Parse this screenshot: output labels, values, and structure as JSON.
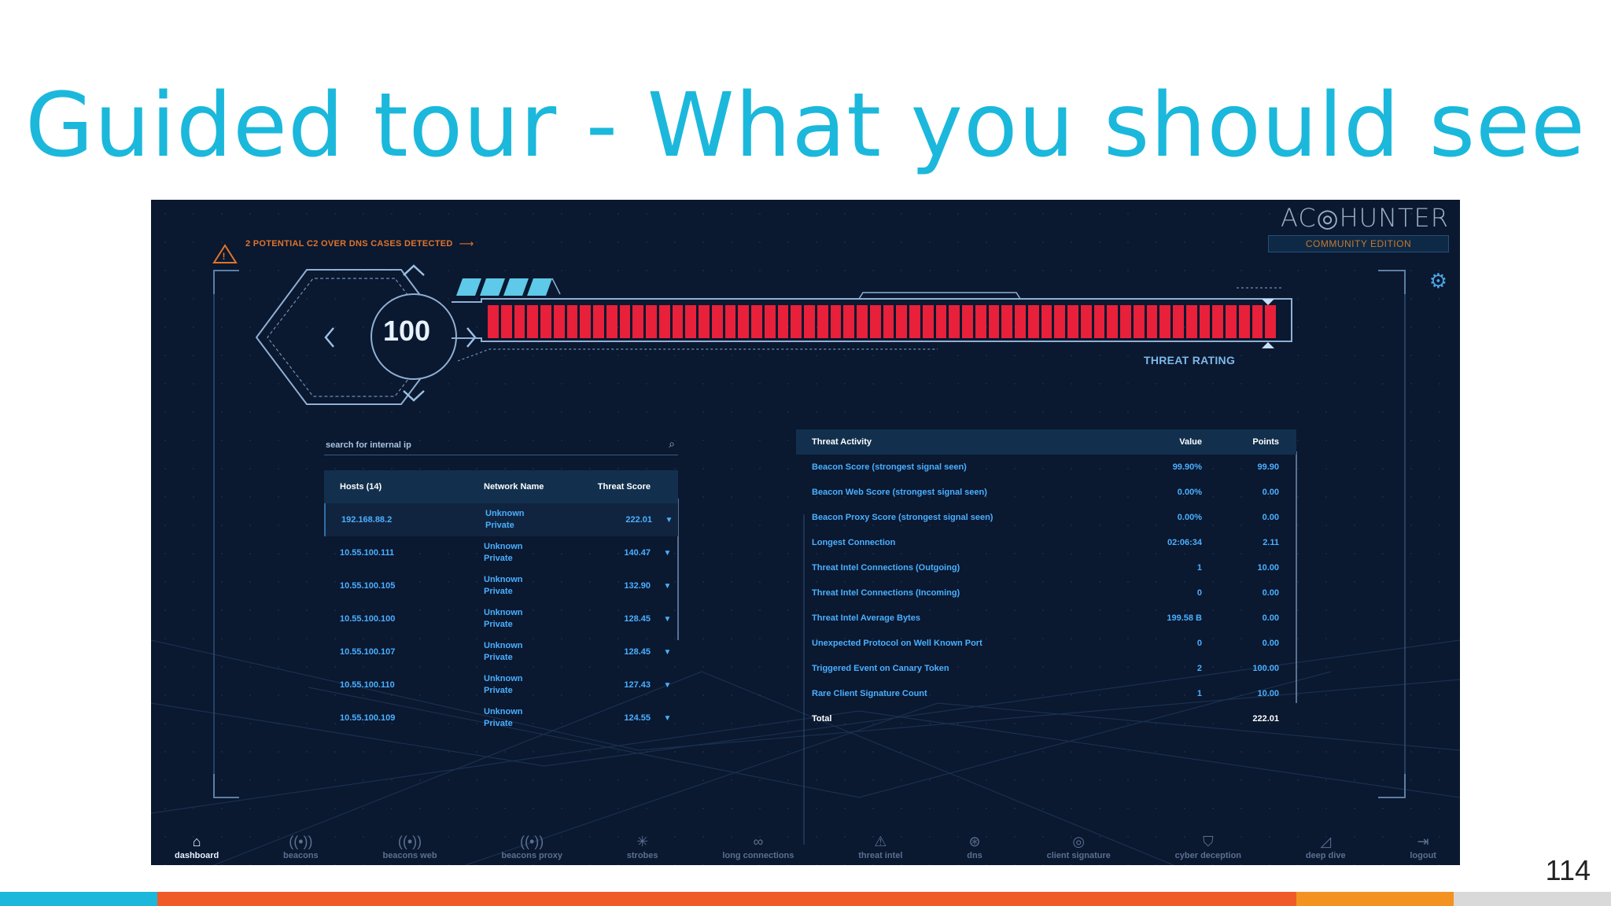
{
  "slide": {
    "title": "Guided tour - What you should see",
    "page_number": "114",
    "footer_colors": [
      "#1bb8dc",
      "#f05a28",
      "#f39221",
      "#d9d9d9"
    ]
  },
  "app": {
    "logo": {
      "text": "AC◎HUNTER",
      "edition": "COMMUNITY EDITION"
    },
    "alert": {
      "text": "2 POTENTIAL C2 OVER DNS CASES DETECTED",
      "arrow": "⟶"
    },
    "settings_icon": "gear-icon",
    "threat_score": "100",
    "threat_rating_label": "THREAT RATING",
    "threat_rating_fraction": 1.0,
    "search": {
      "placeholder": "search for internal ip"
    },
    "hosts_table": {
      "headers": [
        "Hosts (14)",
        "Network Name",
        "Threat Score",
        ""
      ],
      "rows": [
        {
          "ip": "192.168.88.2",
          "network1": "Unknown",
          "network2": "Private",
          "score": "222.01"
        },
        {
          "ip": "10.55.100.111",
          "network1": "Unknown",
          "network2": "Private",
          "score": "140.47"
        },
        {
          "ip": "10.55.100.105",
          "network1": "Unknown",
          "network2": "Private",
          "score": "132.90"
        },
        {
          "ip": "10.55.100.100",
          "network1": "Unknown",
          "network2": "Private",
          "score": "128.45"
        },
        {
          "ip": "10.55.100.107",
          "network1": "Unknown",
          "network2": "Private",
          "score": "128.45"
        },
        {
          "ip": "10.55.100.110",
          "network1": "Unknown",
          "network2": "Private",
          "score": "127.43"
        },
        {
          "ip": "10.55.100.109",
          "network1": "Unknown",
          "network2": "Private",
          "score": "124.55"
        }
      ],
      "filter_icon": "▼"
    },
    "threat_table": {
      "headers": [
        "Threat Activity",
        "Value",
        "Points"
      ],
      "rows": [
        {
          "activity": "Beacon Score (strongest signal seen)",
          "value": "99.90%",
          "points": "99.90"
        },
        {
          "activity": "Beacon Web Score (strongest signal seen)",
          "value": "0.00%",
          "points": "0.00"
        },
        {
          "activity": "Beacon Proxy Score (strongest signal seen)",
          "value": "0.00%",
          "points": "0.00"
        },
        {
          "activity": "Longest Connection",
          "value": "02:06:34",
          "points": "2.11"
        },
        {
          "activity": "Threat Intel Connections (Outgoing)",
          "value": "1",
          "points": "10.00"
        },
        {
          "activity": "Threat Intel Connections (Incoming)",
          "value": "0",
          "points": "0.00"
        },
        {
          "activity": "Threat Intel Average Bytes",
          "value": "199.58 B",
          "points": "0.00"
        },
        {
          "activity": "Unexpected Protocol on Well Known Port",
          "value": "0",
          "points": "0.00"
        },
        {
          "activity": "Triggered Event on Canary Token",
          "value": "2",
          "points": "100.00"
        },
        {
          "activity": "Rare Client Signature Count",
          "value": "1",
          "points": "10.00"
        }
      ],
      "total": {
        "label": "Total",
        "value": "",
        "points": "222.01"
      }
    },
    "nav": [
      {
        "label": "dashboard",
        "icon": "⌂",
        "active": true
      },
      {
        "label": "beacons",
        "icon": "((•))",
        "active": false
      },
      {
        "label": "beacons web",
        "icon": "((•))",
        "active": false
      },
      {
        "label": "beacons proxy",
        "icon": "((•))",
        "active": false
      },
      {
        "label": "strobes",
        "icon": "✳",
        "active": false
      },
      {
        "label": "long connections",
        "icon": "∞",
        "active": false
      },
      {
        "label": "threat intel",
        "icon": "⚠",
        "active": false
      },
      {
        "label": "dns",
        "icon": "⊛",
        "active": false
      },
      {
        "label": "client signature",
        "icon": "◎",
        "active": false
      },
      {
        "label": "cyber deception",
        "icon": "⛉",
        "active": false
      },
      {
        "label": "deep dive",
        "icon": "◿",
        "active": false
      },
      {
        "label": "logout",
        "icon": "⇥",
        "active": false
      }
    ]
  }
}
